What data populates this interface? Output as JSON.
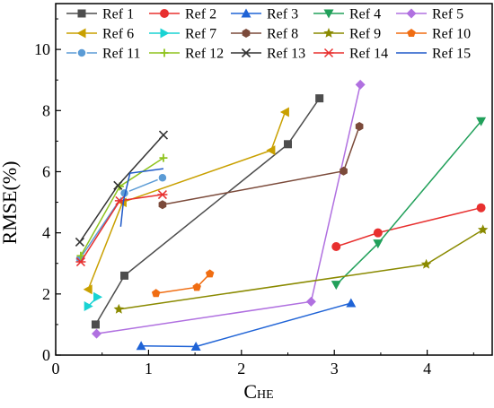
{
  "chart_data": {
    "type": "line",
    "xlabel": "C",
    "xlabel_sub": "HE",
    "ylabel": "RMSE(%)",
    "xlim": [
      0,
      4.7
    ],
    "ylim": [
      0,
      11.5
    ],
    "x_ticks": [
      0,
      1,
      2,
      3,
      4
    ],
    "y_ticks": [
      0,
      2,
      4,
      6,
      8,
      10
    ],
    "x_tick_labels": [
      "0",
      "1",
      "2",
      "3",
      "4"
    ],
    "y_tick_labels": [
      "0",
      "2",
      "4",
      "6",
      "8",
      "10"
    ],
    "grid": false,
    "legend_position": "top",
    "series": [
      {
        "name": "Ref 1",
        "color": "#4d4d4d",
        "marker": "square",
        "x": [
          0.43,
          0.74,
          2.5,
          2.84
        ],
        "y": [
          1.0,
          2.6,
          6.9,
          8.4
        ]
      },
      {
        "name": "Ref 2",
        "color": "#e8302f",
        "marker": "circle",
        "x": [
          3.02,
          3.47,
          4.58
        ],
        "y": [
          3.55,
          4.0,
          4.82
        ]
      },
      {
        "name": "Ref 3",
        "color": "#1f63d6",
        "marker": "triangle",
        "x": [
          0.92,
          1.51,
          3.18
        ],
        "y": [
          0.3,
          0.28,
          1.7
        ]
      },
      {
        "name": "Ref 4",
        "color": "#21a05a",
        "marker": "triangle-down",
        "x": [
          3.02,
          3.47,
          4.58
        ],
        "y": [
          2.3,
          3.65,
          7.65
        ]
      },
      {
        "name": "Ref 5",
        "color": "#b070e0",
        "marker": "diamond",
        "x": [
          0.44,
          2.75,
          3.28
        ],
        "y": [
          0.7,
          1.75,
          8.85
        ]
      },
      {
        "name": "Ref 6",
        "color": "#c9a000",
        "marker": "triangle-left",
        "x": [
          0.35,
          0.72,
          2.32,
          2.47
        ],
        "y": [
          2.15,
          5.0,
          6.7,
          7.95
        ]
      },
      {
        "name": "Ref 7",
        "color": "#19d3d3",
        "marker": "triangle-right",
        "x": [
          0.35,
          0.45
        ],
        "y": [
          1.6,
          1.9
        ]
      },
      {
        "name": "Ref 8",
        "color": "#7b4a3a",
        "marker": "hexagon",
        "x": [
          1.15,
          3.1,
          3.27
        ],
        "y": [
          4.92,
          6.02,
          7.48
        ]
      },
      {
        "name": "Ref 9",
        "color": "#8a8a00",
        "marker": "star",
        "x": [
          0.68,
          3.99,
          4.6
        ],
        "y": [
          1.5,
          2.97,
          4.1
        ]
      },
      {
        "name": "Ref 10",
        "color": "#f06d12",
        "marker": "pentagon",
        "x": [
          1.08,
          1.52,
          1.66
        ],
        "y": [
          2.02,
          2.22,
          2.66
        ]
      },
      {
        "name": "Ref 11",
        "color": "#5b9bd5",
        "marker": "circle-half",
        "x": [
          0.26,
          0.74,
          1.15
        ],
        "y": [
          3.15,
          5.3,
          5.8
        ]
      },
      {
        "name": "Ref 12",
        "color": "#8fc31f",
        "marker": "plus",
        "x": [
          0.27,
          0.69,
          1.16
        ],
        "y": [
          3.25,
          5.52,
          6.45
        ]
      },
      {
        "name": "Ref 13",
        "color": "#333333",
        "marker": "x",
        "x": [
          0.26,
          0.67,
          1.16
        ],
        "y": [
          3.7,
          5.55,
          7.2
        ]
      },
      {
        "name": "Ref 14",
        "color": "#e8302f",
        "marker": "asterisk",
        "x": [
          0.27,
          0.69,
          1.15
        ],
        "y": [
          3.05,
          5.05,
          5.25
        ]
      },
      {
        "name": "Ref 15",
        "color": "#1e59c8",
        "marker": "none",
        "x": [
          0.7,
          0.73,
          0.8,
          1.16
        ],
        "y": [
          4.2,
          5.05,
          5.95,
          6.1
        ]
      }
    ]
  }
}
